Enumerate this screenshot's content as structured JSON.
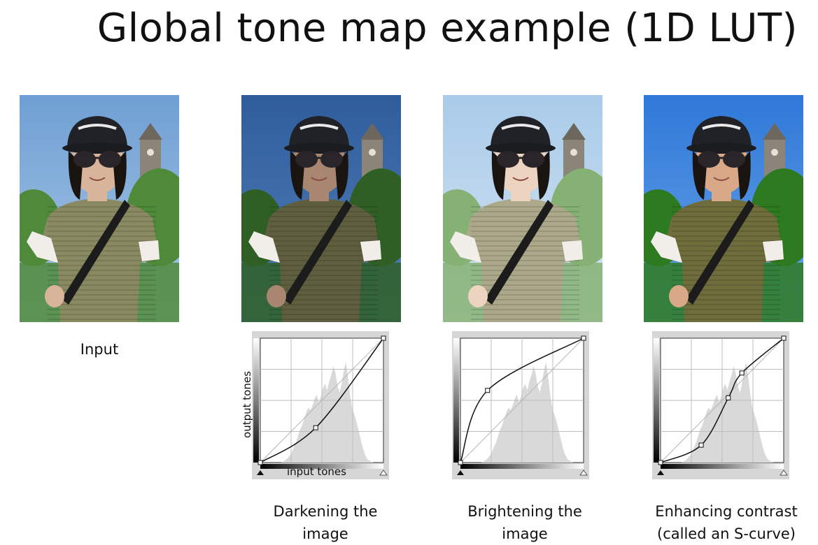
{
  "title": "Global tone map example (1D LUT)",
  "panels": [
    {
      "id": "input",
      "caption_lines": [
        "Input"
      ],
      "tint": "input"
    },
    {
      "id": "darken",
      "caption_lines": [
        "Darkening the",
        "image"
      ],
      "tint": "dark"
    },
    {
      "id": "brighten",
      "caption_lines": [
        "Brightening the",
        "image"
      ],
      "tint": "bright"
    },
    {
      "id": "contrast",
      "caption_lines": [
        "Enhancing contrast",
        "(called an S-curve)"
      ],
      "tint": "contrast"
    }
  ],
  "axes": {
    "x_label": "input tones",
    "y_label": "output tones"
  },
  "curves": [
    {
      "id": "darken",
      "type": "bezier",
      "points": [
        [
          0,
          0
        ],
        [
          0.45,
          0.28
        ],
        [
          1,
          1
        ]
      ],
      "control_points": [
        [
          0.45,
          0.28
        ]
      ]
    },
    {
      "id": "brighten",
      "type": "bezier",
      "points": [
        [
          0,
          0
        ],
        [
          0.22,
          0.58
        ],
        [
          1,
          1
        ]
      ],
      "control_points": [
        [
          0.22,
          0.58
        ]
      ]
    },
    {
      "id": "contrast",
      "type": "s-curve",
      "points": [
        [
          0,
          0
        ],
        [
          0.33,
          0.14
        ],
        [
          0.55,
          0.52
        ],
        [
          0.66,
          0.72
        ],
        [
          1,
          1
        ]
      ],
      "control_points": [
        [
          0.33,
          0.14
        ],
        [
          0.55,
          0.52
        ],
        [
          0.66,
          0.72
        ]
      ]
    }
  ]
}
